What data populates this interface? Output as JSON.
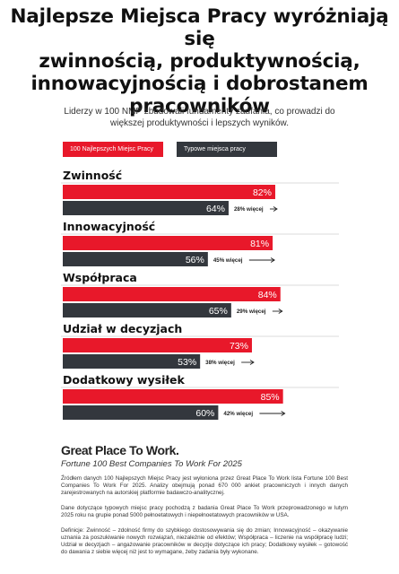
{
  "headline": {
    "line1": "Najlepsze Miejsca Pracy wyróżniają się",
    "line2": "zwinnością, produktywnością,",
    "line3": "innowacyjnością i dobrostanem",
    "line4": "pracowników"
  },
  "subtitle": {
    "line1": "Liderzy w 100 NMP zbudowali fundamenty zaufania, co prowadzi do",
    "line2": "większej produktywności i lepszych wyników."
  },
  "colors": {
    "red": "#e8182a",
    "dark": "#33373d"
  },
  "chart_data": {
    "type": "bar",
    "orientation": "horizontal",
    "xlim": [
      0,
      100
    ],
    "categories": [
      "Zwinność",
      "Innowacyjność",
      "Współpraca",
      "Udział w decyzjach",
      "Dodatkowy wysiłek"
    ],
    "series": [
      {
        "name": "100 Najlepszych Miejsc Pracy",
        "color": "#e8182a",
        "values": [
          82,
          81,
          84,
          73,
          85
        ]
      },
      {
        "name": "Typowe miejsca pracy",
        "color": "#33373d",
        "values": [
          64,
          56,
          65,
          53,
          60
        ]
      }
    ],
    "value_labels": {
      "top": [
        "82%",
        "81%",
        "84%",
        "73%",
        "85%"
      ],
      "typical": [
        "64%",
        "56%",
        "65%",
        "53%",
        "60%"
      ]
    },
    "difference_labels": [
      "28% więcej",
      "45% więcej",
      "29% więcej",
      "38% więcej",
      "42% więcej"
    ]
  },
  "brand": {
    "logo": "Great Place To Work.",
    "subtitle": "Fortune 100 Best Companies To Work For 2025"
  },
  "footnotes": {
    "source": "Źródłem danych 100 Najlepszych Miejsc Pracy jest wyłoniona przez Great Place To Work lista Fortune 100 Best Companies To Work For 2025. Analizy obejmują ponad 670 000 ankiet pracowniczych i innych danych zarejestrowanych na autorskiej platformie badawczo-analitycznej.",
    "typical": "Dane dotyczące typowych miejsc pracy pochodzą z badania Great Place To Work przeprowadzonego w lutym 2025 roku na grupie ponad 5000 pełnoetatowych i niepełnoetatowych pracowników w USA.",
    "definitions": "Definicje: Zwinność – zdolność firmy do szybkiego dostosowywania się do zmian; Innowacyjność – okazywanie uznania za poszukiwanie nowych rozwiązań, niezależnie od efektów; Współpraca – liczenie na współpracę ludzi; Udział w decyzjach – angażowanie pracowników w decyzje dotyczące ich pracy; Dodatkowy wysiłek – gotowość do dawania z siebie więcej niż jest to wymagane, żeby zadania były wykonane."
  }
}
